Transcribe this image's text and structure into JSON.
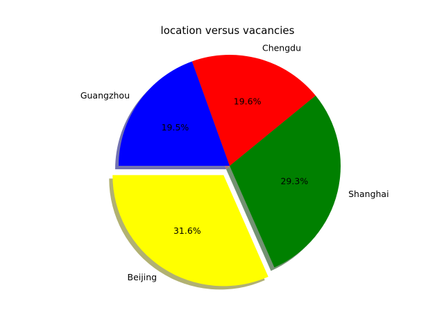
{
  "chart_data": {
    "type": "pie",
    "title": "location versus vacancies",
    "categories": [
      "Beijing",
      "Shanghai",
      "Chengdu",
      "Guangzhou"
    ],
    "values": [
      31.6,
      29.3,
      19.6,
      19.5
    ],
    "percent_labels": [
      "31.6%",
      "29.3%",
      "19.6%",
      "19.5%"
    ],
    "colors": [
      "#ffff00",
      "#008000",
      "#ff0000",
      "#0000ff"
    ],
    "exploded": [
      "Beijing"
    ],
    "shadow": true,
    "start_angle_deg": 180,
    "direction": "counterclockwise"
  }
}
